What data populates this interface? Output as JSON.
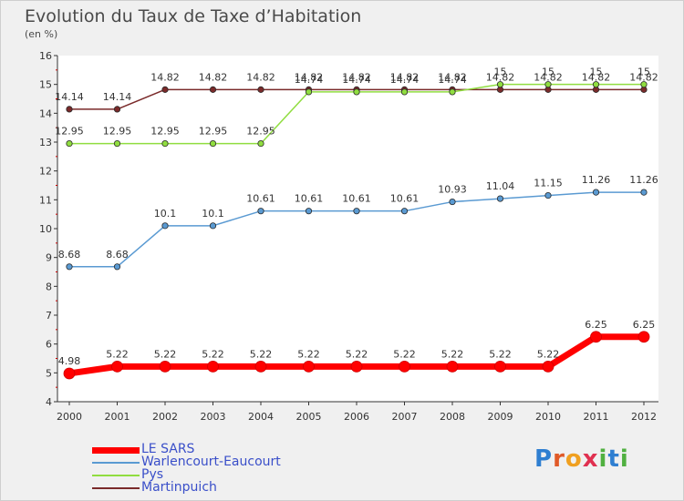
{
  "title": "Evolution du Taux de Taxe d’Habitation",
  "subtitle": "(en %)",
  "logo_text": "Proxiti",
  "chart_data": {
    "type": "line",
    "title": "Evolution du Taux de Taxe d’Habitation",
    "ylabel": "(en %)",
    "xlabel": "",
    "x": [
      "2000",
      "2001",
      "2002",
      "2003",
      "2004",
      "2005",
      "2006",
      "2007",
      "2008",
      "2009",
      "2010",
      "2011",
      "2012"
    ],
    "yticks": [
      "4",
      "5",
      "6",
      "7",
      "8",
      "9",
      "10",
      "11",
      "12",
      "13",
      "14",
      "15",
      "16"
    ],
    "ylim": [
      4,
      16
    ],
    "grid": false,
    "legend_position": "bottom-left",
    "series": [
      {
        "name": "LE SARS",
        "color": "#ff0000",
        "values": [
          4.98,
          5.22,
          5.22,
          5.22,
          5.22,
          5.22,
          5.22,
          5.22,
          5.22,
          5.22,
          5.22,
          6.25,
          6.25
        ],
        "labels": [
          "4.98",
          "5.22",
          "5.22",
          "5.22",
          "5.22",
          "5.22",
          "5.22",
          "5.22",
          "5.22",
          "5.22",
          "5.22",
          "6.25",
          "6.25"
        ]
      },
      {
        "name": "Warlencourt-Eaucourt",
        "color": "#5a9ad2",
        "values": [
          8.68,
          8.68,
          10.1,
          10.1,
          10.61,
          10.61,
          10.61,
          10.61,
          10.93,
          11.04,
          11.15,
          11.26,
          11.26
        ],
        "labels": [
          "8.68",
          "8.68",
          "10.1",
          "10.1",
          "10.61",
          "10.61",
          "10.61",
          "10.61",
          "10.93",
          "11.04",
          "11.15",
          "11.26",
          "11.26"
        ]
      },
      {
        "name": "Pys",
        "color": "#90dd40",
        "values": [
          12.95,
          12.95,
          12.95,
          12.95,
          12.95,
          14.74,
          14.74,
          14.74,
          14.74,
          15,
          15,
          15,
          15
        ],
        "labels": [
          "12.95",
          "12.95",
          "12.95",
          "12.95",
          "12.95",
          "14.74",
          "14.74",
          "14.74",
          "14.74",
          "15",
          "15",
          "15",
          "15"
        ]
      },
      {
        "name": "Martinpuich",
        "color": "#7a2a2a",
        "values": [
          14.14,
          14.14,
          14.82,
          14.82,
          14.82,
          14.82,
          14.82,
          14.82,
          14.82,
          14.82,
          14.82,
          14.82,
          14.82
        ],
        "labels": [
          "14.14",
          "14.14",
          "14.82",
          "14.82",
          "14.82",
          "14.82",
          "14.82",
          "14.82",
          "14.82",
          "14.82",
          "14.82",
          "14.82",
          "14.82"
        ]
      }
    ]
  }
}
